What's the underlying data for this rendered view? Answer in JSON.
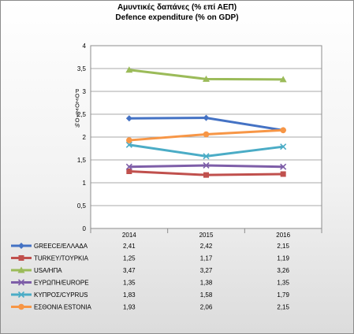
{
  "chart_data": {
    "type": "line",
    "title": "Αμυντικές δαπάνες (% επί ΑΕΠ)",
    "subtitle": "Defence expenditure (% on GDP)",
    "ylabel": "Ρ Ο Σ Ο Σ Τ Ο %",
    "categories": [
      "2014",
      "2015",
      "2016"
    ],
    "ylim": [
      0,
      4
    ],
    "yticks": [
      "0",
      "0,5",
      "1",
      "1,5",
      "2",
      "2,5",
      "3",
      "3,5",
      "4"
    ],
    "ytick_values": [
      0,
      0.5,
      1,
      1.5,
      2,
      2.5,
      3,
      3.5,
      4
    ],
    "grid": true,
    "legend": "data-table below plot",
    "series": [
      {
        "name": "GREECE/ΕΛΛΑΔΑ",
        "values": [
          2.41,
          2.42,
          2.15
        ],
        "labels": [
          "2,41",
          "2,42",
          "2,15"
        ],
        "color": "#4472c4",
        "marker": "diamond"
      },
      {
        "name": "TURKEY/ΤΟΥΡΚΙΑ",
        "values": [
          1.25,
          1.17,
          1.19
        ],
        "labels": [
          "1,25",
          "1,17",
          "1,19"
        ],
        "color": "#c0504d",
        "marker": "square"
      },
      {
        "name": "USA/ΗΠΑ",
        "values": [
          3.47,
          3.27,
          3.26
        ],
        "labels": [
          "3,47",
          "3,27",
          "3,26"
        ],
        "color": "#9bbb59",
        "marker": "triangle"
      },
      {
        "name": "ΕΥΡΩΠΗ/EUROPE",
        "values": [
          1.35,
          1.38,
          1.35
        ],
        "labels": [
          "1,35",
          "1,38",
          "1,35"
        ],
        "color": "#7e5ea8",
        "marker": "x"
      },
      {
        "name": "ΚΥΠΡΟΣ/CYPRUS",
        "values": [
          1.83,
          1.58,
          1.79
        ],
        "labels": [
          "1,83",
          "1,58",
          "1,79"
        ],
        "color": "#4bacc6",
        "marker": "x"
      },
      {
        "name": "ΕΣΘΟΝΙΑ ESTONIA",
        "values": [
          1.93,
          2.06,
          2.15
        ],
        "labels": [
          "1,93",
          "2,06",
          "2,15"
        ],
        "color": "#f79646",
        "marker": "circle"
      }
    ]
  }
}
